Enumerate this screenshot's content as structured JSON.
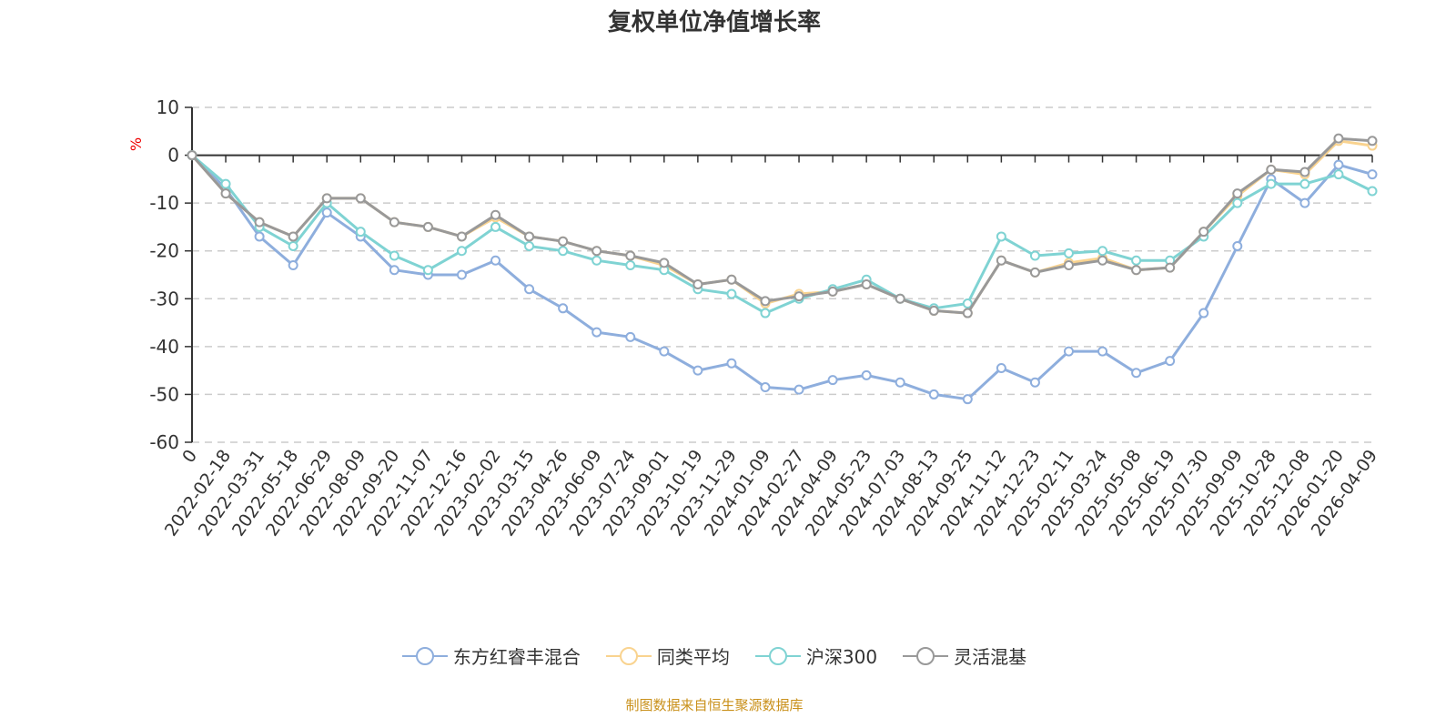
{
  "chart_data": {
    "type": "line",
    "title": "复权单位净值增长率",
    "ylabel": "%",
    "xlabel": "",
    "ylim": [
      -60,
      10
    ],
    "yticks": [
      10,
      0,
      -10,
      -20,
      -30,
      -40,
      -50,
      -60
    ],
    "grid": true,
    "legend_position": "bottom",
    "categories": [
      "0",
      "2022-02-18",
      "2022-03-31",
      "2022-05-18",
      "2022-06-29",
      "2022-08-09",
      "2022-09-20",
      "2022-11-07",
      "2022-12-16",
      "2023-02-02",
      "2023-03-15",
      "2023-04-26",
      "2023-06-09",
      "2023-07-24",
      "2023-09-01",
      "2023-10-19",
      "2023-11-29",
      "2024-01-09",
      "2024-02-27",
      "2024-04-09",
      "2024-05-23",
      "2024-07-03",
      "2024-08-13",
      "2024-09-25",
      "2024-11-12",
      "2024-12-23",
      "2025-02-11",
      "2025-03-24",
      "2025-05-08",
      "2025-06-19",
      "2025-07-30",
      "2025-09-09",
      "2025-10-28",
      "2025-12-08",
      "2026-01-20",
      "2026-04-09"
    ],
    "series": [
      {
        "name": "东方红睿丰混合",
        "color": "#8eaedd",
        "values": [
          0,
          -7,
          -17,
          -23,
          -12,
          -17,
          -24,
          -25,
          -25,
          -22,
          -28,
          -32,
          -37,
          -38,
          -41,
          -45,
          -43.5,
          -48.5,
          -49,
          -47,
          -46,
          -47.5,
          -50,
          -51,
          -44.5,
          -47.5,
          -41,
          -41,
          -45.5,
          -43,
          -33,
          -19,
          -5,
          -10,
          -2,
          -4
        ]
      },
      {
        "name": "同类平均",
        "color": "#f9d38f",
        "values": [
          0,
          -8,
          -14,
          -17,
          -9,
          -9,
          -14,
          -15,
          -17,
          -13,
          -17,
          -18,
          -20,
          -21,
          -23,
          -27,
          -26,
          -31,
          -29,
          -28.5,
          -27,
          -30,
          -32.5,
          -33,
          -22,
          -24.5,
          -22.5,
          -21.5,
          -24,
          -23.5,
          -16,
          -8.5,
          -3,
          -4,
          3,
          2
        ]
      },
      {
        "name": "沪深300",
        "color": "#7fd3d3",
        "values": [
          0,
          -6,
          -15,
          -19,
          -10,
          -16,
          -21,
          -24,
          -20,
          -15,
          -19,
          -20,
          -22,
          -23,
          -24,
          -28,
          -29,
          -33,
          -30,
          -28,
          -26,
          -30,
          -32,
          -31,
          -17,
          -21,
          -20.5,
          -20,
          -22,
          -22,
          -17,
          -10,
          -6,
          -6,
          -4,
          -7.5
        ]
      },
      {
        "name": "灵活混基",
        "color": "#999999",
        "values": [
          0,
          -8,
          -14,
          -17,
          -9,
          -9,
          -14,
          -15,
          -17,
          -12.5,
          -17,
          -18,
          -20,
          -21,
          -22.5,
          -27,
          -26,
          -30.5,
          -29.5,
          -28.5,
          -27,
          -30,
          -32.5,
          -33,
          -22,
          -24.5,
          -23,
          -22,
          -24,
          -23.5,
          -16,
          -8,
          -3,
          -3.5,
          3.5,
          3
        ]
      }
    ]
  },
  "source": "制图数据来自恒生聚源数据库"
}
